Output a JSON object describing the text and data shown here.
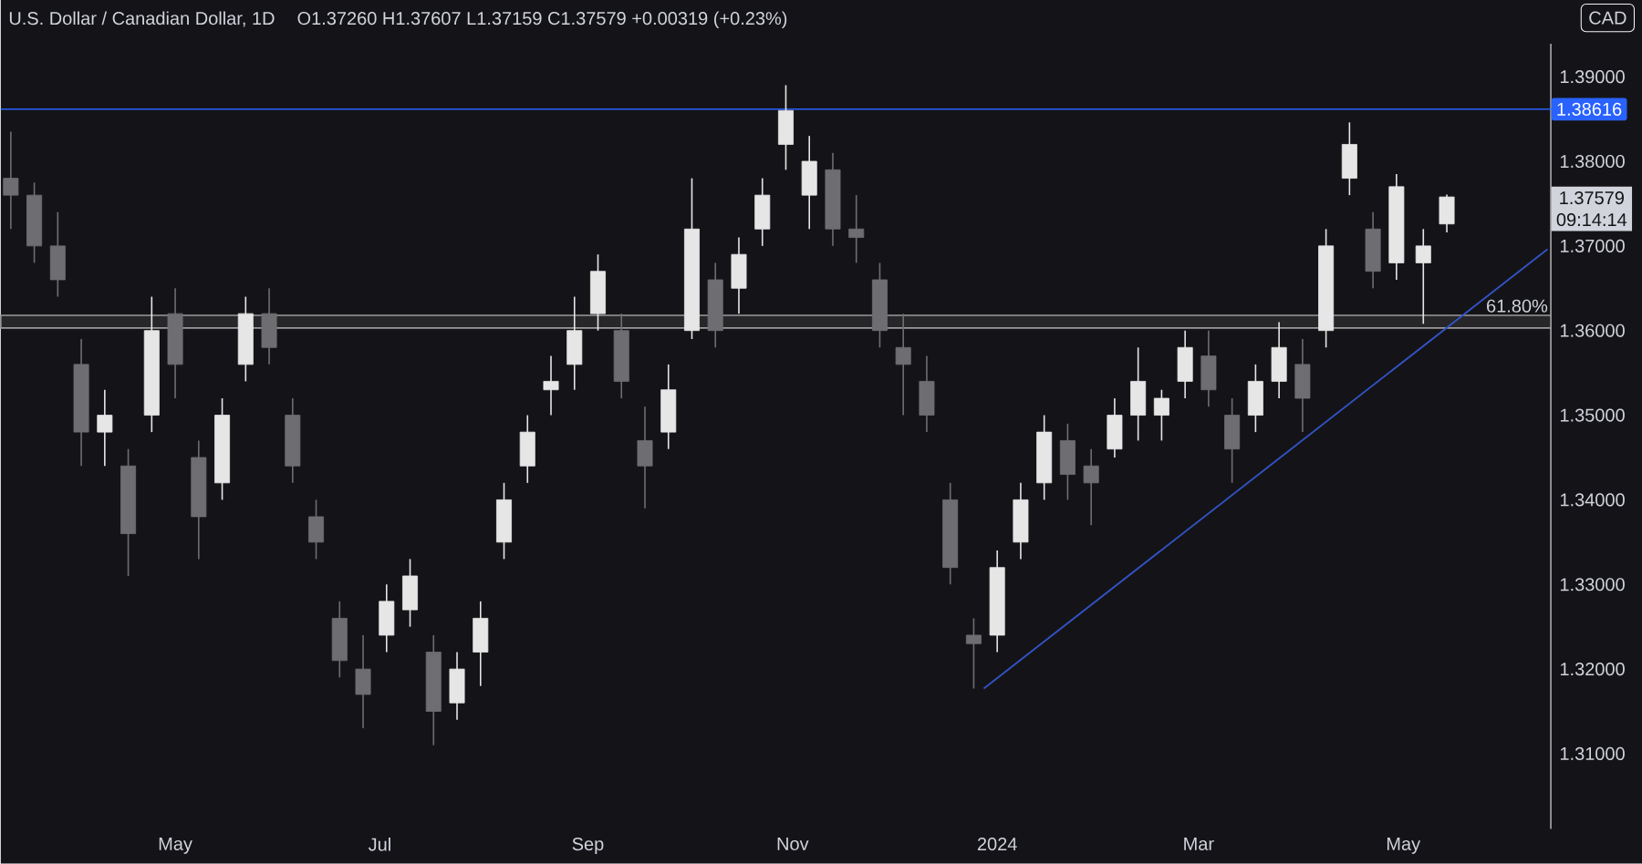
{
  "chart_data": {
    "type": "candlestick",
    "title": "U.S. Dollar / Canadian Dollar, 1D",
    "subtitle": "O1.37260  H1.37607  L1.37159  C1.37579  +0.00319 (+0.23%)",
    "x": [
      "2023-03-13",
      "2023-03-20",
      "2023-03-27",
      "2023-04-03",
      "2023-04-10",
      "2023-04-17",
      "2023-04-24",
      "2023-05-01",
      "2023-05-08",
      "2023-05-15",
      "2023-05-22",
      "2023-05-29",
      "2023-06-05",
      "2023-06-12",
      "2023-06-19",
      "2023-06-26",
      "2023-07-03",
      "2023-07-10",
      "2023-07-17",
      "2023-07-24",
      "2023-07-31",
      "2023-08-07",
      "2023-08-14",
      "2023-08-21",
      "2023-08-28",
      "2023-09-04",
      "2023-09-11",
      "2023-09-18",
      "2023-09-25",
      "2023-10-02",
      "2023-10-09",
      "2023-10-16",
      "2023-10-23",
      "2023-10-30",
      "2023-11-06",
      "2023-11-13",
      "2023-11-20",
      "2023-11-27",
      "2023-12-04",
      "2023-12-11",
      "2023-12-18",
      "2023-12-25",
      "2024-01-01",
      "2024-01-08",
      "2024-01-15",
      "2024-01-22",
      "2024-01-29",
      "2024-02-05",
      "2024-02-12",
      "2024-02-19",
      "2024-02-26",
      "2024-03-04",
      "2024-03-11",
      "2024-03-18",
      "2024-03-25",
      "2024-04-01",
      "2024-04-08",
      "2024-04-15",
      "2024-04-22",
      "2024-04-29",
      "2024-05-07",
      "2024-05-14"
    ],
    "ohlc": [
      [
        1.378,
        1.3835,
        1.372,
        1.376
      ],
      [
        1.376,
        1.3775,
        1.368,
        1.37
      ],
      [
        1.37,
        1.374,
        1.364,
        1.366
      ],
      [
        1.356,
        1.359,
        1.344,
        1.348
      ],
      [
        1.348,
        1.353,
        1.344,
        1.35
      ],
      [
        1.344,
        1.346,
        1.331,
        1.336
      ],
      [
        1.35,
        1.364,
        1.348,
        1.36
      ],
      [
        1.362,
        1.365,
        1.352,
        1.356
      ],
      [
        1.345,
        1.347,
        1.333,
        1.338
      ],
      [
        1.342,
        1.352,
        1.34,
        1.35
      ],
      [
        1.356,
        1.364,
        1.354,
        1.362
      ],
      [
        1.362,
        1.365,
        1.356,
        1.358
      ],
      [
        1.35,
        1.352,
        1.342,
        1.344
      ],
      [
        1.338,
        1.34,
        1.333,
        1.335
      ],
      [
        1.326,
        1.328,
        1.319,
        1.321
      ],
      [
        1.32,
        1.324,
        1.313,
        1.317
      ],
      [
        1.324,
        1.33,
        1.322,
        1.328
      ],
      [
        1.327,
        1.333,
        1.325,
        1.331
      ],
      [
        1.322,
        1.324,
        1.311,
        1.315
      ],
      [
        1.316,
        1.322,
        1.314,
        1.32
      ],
      [
        1.322,
        1.328,
        1.318,
        1.326
      ],
      [
        1.335,
        1.342,
        1.333,
        1.34
      ],
      [
        1.344,
        1.35,
        1.342,
        1.348
      ],
      [
        1.353,
        1.357,
        1.35,
        1.354
      ],
      [
        1.356,
        1.364,
        1.353,
        1.36
      ],
      [
        1.362,
        1.369,
        1.36,
        1.367
      ],
      [
        1.36,
        1.362,
        1.352,
        1.354
      ],
      [
        1.347,
        1.351,
        1.339,
        1.344
      ],
      [
        1.348,
        1.356,
        1.346,
        1.353
      ],
      [
        1.36,
        1.378,
        1.359,
        1.372
      ],
      [
        1.366,
        1.368,
        1.358,
        1.36
      ],
      [
        1.365,
        1.371,
        1.362,
        1.369
      ],
      [
        1.372,
        1.378,
        1.37,
        1.376
      ],
      [
        1.382,
        1.389,
        1.379,
        1.386
      ],
      [
        1.376,
        1.383,
        1.372,
        1.38
      ],
      [
        1.379,
        1.381,
        1.37,
        1.372
      ],
      [
        1.372,
        1.376,
        1.368,
        1.371
      ],
      [
        1.366,
        1.368,
        1.358,
        1.36
      ],
      [
        1.358,
        1.362,
        1.35,
        1.356
      ],
      [
        1.354,
        1.357,
        1.348,
        1.35
      ],
      [
        1.34,
        1.342,
        1.33,
        1.332
      ],
      [
        1.324,
        1.326,
        1.3177,
        1.323
      ],
      [
        1.324,
        1.334,
        1.322,
        1.332
      ],
      [
        1.335,
        1.342,
        1.333,
        1.34
      ],
      [
        1.342,
        1.35,
        1.34,
        1.348
      ],
      [
        1.347,
        1.349,
        1.34,
        1.343
      ],
      [
        1.344,
        1.346,
        1.337,
        1.342
      ],
      [
        1.346,
        1.352,
        1.345,
        1.35
      ],
      [
        1.35,
        1.358,
        1.347,
        1.354
      ],
      [
        1.35,
        1.353,
        1.347,
        1.352
      ],
      [
        1.354,
        1.36,
        1.352,
        1.358
      ],
      [
        1.357,
        1.36,
        1.351,
        1.353
      ],
      [
        1.35,
        1.352,
        1.342,
        1.346
      ],
      [
        1.35,
        1.356,
        1.348,
        1.354
      ],
      [
        1.354,
        1.361,
        1.352,
        1.358
      ],
      [
        1.356,
        1.359,
        1.348,
        1.352
      ],
      [
        1.36,
        1.372,
        1.358,
        1.37
      ],
      [
        1.378,
        1.3846,
        1.376,
        1.382
      ],
      [
        1.372,
        1.374,
        1.365,
        1.367
      ],
      [
        1.368,
        1.3785,
        1.366,
        1.377
      ],
      [
        1.368,
        1.372,
        1.3608,
        1.37
      ],
      [
        1.3726,
        1.37607,
        1.37159,
        1.37579
      ]
    ],
    "series": [
      {
        "type": "line",
        "x": [
          "2023-12-28",
          "2024-06-13"
        ],
        "values": [
          1.3177,
          1.3696
        ],
        "color": "#3352c4"
      }
    ],
    "xlim": [
      "2023-03-10",
      "2024-06-14"
    ],
    "xticks": [
      {
        "value": "2023-05-01",
        "label": "May"
      },
      {
        "value": "2023-07-01",
        "label": "Jul"
      },
      {
        "value": "2023-09-01",
        "label": "Sep"
      },
      {
        "value": "2023-11-01",
        "label": "Nov"
      },
      {
        "value": "2024-01-01",
        "label": "2024"
      },
      {
        "value": "2024-03-01",
        "label": "Mar"
      },
      {
        "value": "2024-05-01",
        "label": "May"
      }
    ],
    "ylim": [
      1.3011,
      1.3939
    ],
    "yticks": [
      {
        "value": 1.31,
        "label": "1.31000"
      },
      {
        "value": 1.32,
        "label": "1.32000"
      },
      {
        "value": 1.33,
        "label": "1.33000"
      },
      {
        "value": 1.34,
        "label": "1.34000"
      },
      {
        "value": 1.35,
        "label": "1.35000"
      },
      {
        "value": 1.36,
        "label": "1.36000"
      },
      {
        "value": 1.37,
        "label": "1.37000"
      },
      {
        "value": 1.38,
        "label": "1.38000"
      },
      {
        "value": 1.39,
        "label": "1.39000"
      }
    ],
    "ref_lines": [
      {
        "axis": "y",
        "value": 1.38616,
        "label": "1.38616",
        "color": "#2962ff"
      }
    ],
    "bands": [
      {
        "axis": "y",
        "from": 1.3603,
        "to": 1.3618,
        "label": "61.80%",
        "color": "#9a9a9a"
      }
    ],
    "annotations": [
      "CAD",
      "1.37579",
      "09:14:14"
    ],
    "grid": false
  }
}
